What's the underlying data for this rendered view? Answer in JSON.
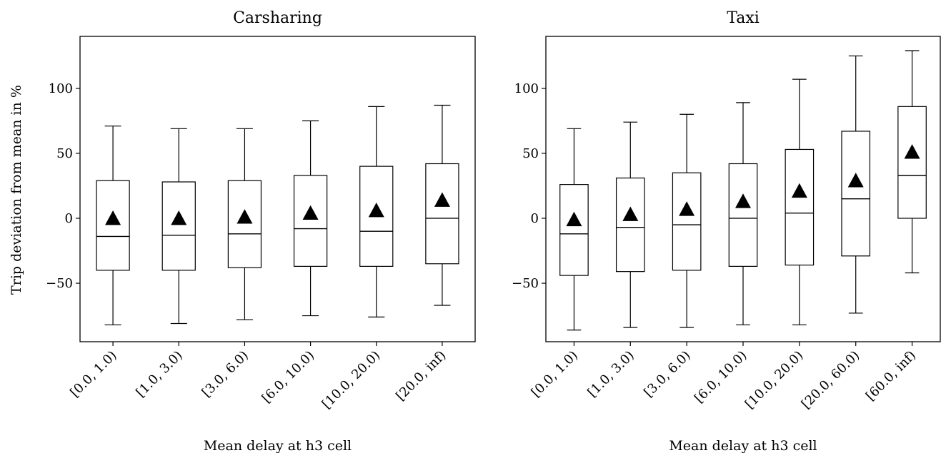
{
  "chart_data": [
    {
      "type": "box",
      "title": "Carsharing",
      "xlabel": "Mean delay at h3 cell",
      "ylabel": "Trip deviation from mean in %",
      "ylim": [
        -95,
        140
      ],
      "yticks": [
        -50,
        0,
        50,
        100
      ],
      "categories": [
        "[0.0, 1.0)",
        "[1.0, 3.0)",
        "[3.0, 6.0)",
        "[6.0, 10.0)",
        "[10.0, 20.0)",
        "[20.0, inf)"
      ],
      "boxes": [
        {
          "whisker_low": -82,
          "q1": -40,
          "median": -14,
          "q3": 29,
          "whisker_high": 71,
          "mean": 0
        },
        {
          "whisker_low": -81,
          "q1": -40,
          "median": -13,
          "q3": 28,
          "whisker_high": 69,
          "mean": 0
        },
        {
          "whisker_low": -78,
          "q1": -38,
          "median": -12,
          "q3": 29,
          "whisker_high": 69,
          "mean": 1
        },
        {
          "whisker_low": -75,
          "q1": -37,
          "median": -8,
          "q3": 33,
          "whisker_high": 75,
          "mean": 4
        },
        {
          "whisker_low": -76,
          "q1": -37,
          "median": -10,
          "q3": 40,
          "whisker_high": 86,
          "mean": 6
        },
        {
          "whisker_low": -67,
          "q1": -35,
          "median": 0,
          "q3": 42,
          "whisker_high": 87,
          "mean": 14
        }
      ],
      "grid": false
    },
    {
      "type": "box",
      "title": "Taxi",
      "xlabel": "Mean delay at h3 cell",
      "ylabel": "",
      "ylim": [
        -95,
        140
      ],
      "yticks": [
        -50,
        0,
        50,
        100
      ],
      "categories": [
        "[0.0, 1.0)",
        "[1.0, 3.0)",
        "[3.0, 6.0)",
        "[6.0, 10.0)",
        "[10.0, 20.0)",
        "[20.0, 60.0)",
        "[60.0, inf)"
      ],
      "boxes": [
        {
          "whisker_low": -86,
          "q1": -44,
          "median": -12,
          "q3": 26,
          "whisker_high": 69,
          "mean": -1
        },
        {
          "whisker_low": -84,
          "q1": -41,
          "median": -7,
          "q3": 31,
          "whisker_high": 74,
          "mean": 3
        },
        {
          "whisker_low": -84,
          "q1": -40,
          "median": -5,
          "q3": 35,
          "whisker_high": 80,
          "mean": 7
        },
        {
          "whisker_low": -82,
          "q1": -37,
          "median": 0,
          "q3": 42,
          "whisker_high": 89,
          "mean": 13
        },
        {
          "whisker_low": -82,
          "q1": -36,
          "median": 4,
          "q3": 53,
          "whisker_high": 107,
          "mean": 21
        },
        {
          "whisker_low": -73,
          "q1": -29,
          "median": 15,
          "q3": 67,
          "whisker_high": 125,
          "mean": 29
        },
        {
          "whisker_low": -42,
          "q1": 0,
          "median": 33,
          "q3": 86,
          "whisker_high": 129,
          "mean": 51
        }
      ],
      "grid": false
    }
  ]
}
